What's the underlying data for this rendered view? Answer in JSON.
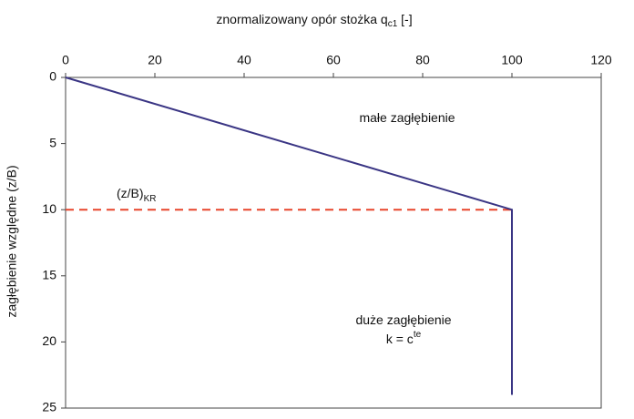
{
  "chart_data": {
    "type": "line",
    "title": {
      "text": "znormalizowany opór stożka q",
      "sub": "c1",
      "end": " [-]"
    },
    "y_label": "zagłębienie względne (z/B)",
    "x": [
      0,
      100,
      100
    ],
    "series": [
      {
        "name": null,
        "color": "#3a3584",
        "values": [
          0,
          10,
          24
        ]
      }
    ],
    "reference_line": {
      "y": 10,
      "x": [
        0,
        100
      ],
      "color": "#e8452c",
      "dashed": true
    },
    "annotations": [
      {
        "text": "małe zagłębienie"
      },
      {
        "text": "(z/B)",
        "sub": "KR"
      },
      {
        "text": "duże zagłębienie"
      },
      {
        "text": "k = c",
        "sup": "te"
      }
    ],
    "xlim": [
      0,
      120
    ],
    "xticks": [
      0,
      20,
      40,
      60,
      80,
      100,
      120
    ],
    "ylim": [
      0,
      25
    ],
    "yticks": [
      0,
      5,
      10,
      15,
      20,
      25
    ],
    "y_inverted": true,
    "x_axis_position": "top",
    "grid": false
  }
}
